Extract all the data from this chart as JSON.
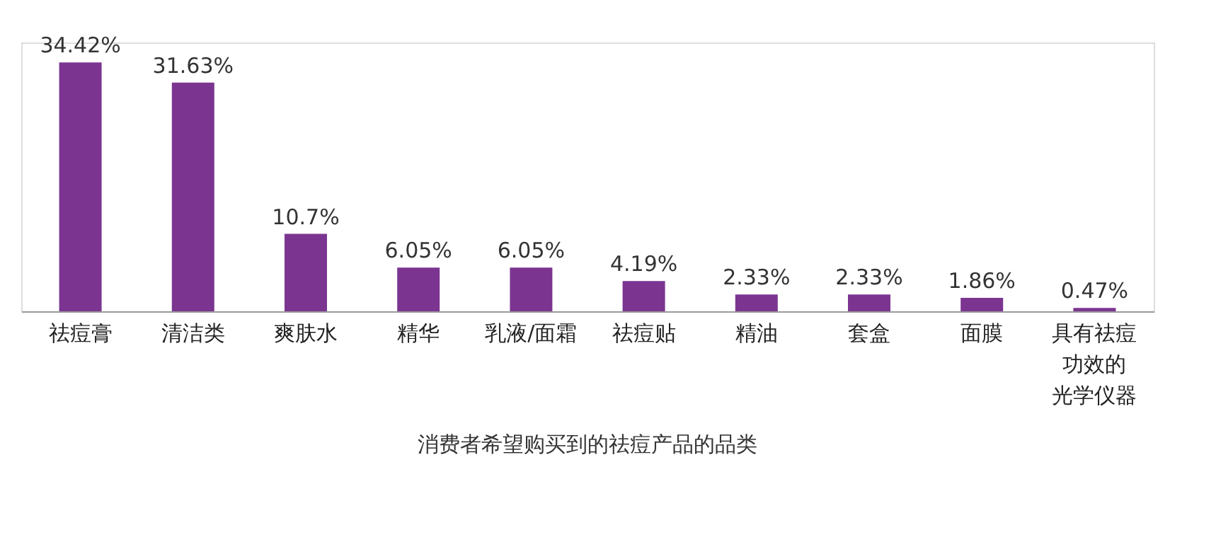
{
  "chart_data": {
    "type": "bar",
    "categories": [
      "祛痘膏",
      "清洁类",
      "爽肤水",
      "精华",
      "乳液/面霜",
      "祛痘贴",
      "精油",
      "套盒",
      "面膜",
      "具有祛痘功效的光学仪器"
    ],
    "values": [
      34.42,
      31.63,
      10.7,
      6.05,
      6.05,
      4.19,
      2.33,
      2.33,
      1.86,
      0.47
    ],
    "value_labels": [
      "34.42%",
      "31.63%",
      "10.7%",
      "6.05%",
      "6.05%",
      "4.19%",
      "2.33%",
      "2.33%",
      "1.86%",
      "0.47%"
    ],
    "color": "#7b3590",
    "annotations": [
      "消费者希望购买到的祛痘产品的品类"
    ]
  }
}
